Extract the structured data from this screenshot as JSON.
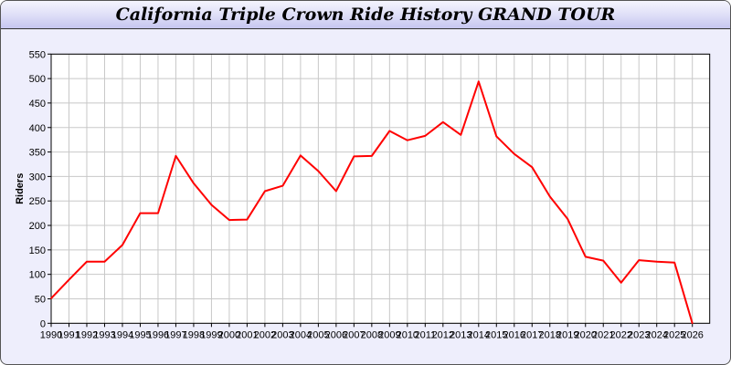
{
  "window": {
    "title": "California Triple Crown Ride History GRAND TOUR"
  },
  "chart_data": {
    "type": "line",
    "title": "California Triple Crown Ride History GRAND TOUR",
    "xlabel": "",
    "ylabel": "Riders",
    "x": [
      1990,
      1991,
      1992,
      1993,
      1994,
      1995,
      1996,
      1997,
      1998,
      1999,
      2000,
      2001,
      2002,
      2003,
      2004,
      2005,
      2006,
      2007,
      2008,
      2009,
      2010,
      2011,
      2012,
      2013,
      2014,
      2015,
      2016,
      2017,
      2018,
      2019,
      2020,
      2021,
      2022,
      2023,
      2024,
      2025,
      2026
    ],
    "series": [
      {
        "color": "#ff0000",
        "values": [
          51,
          89,
          126,
          126,
          160,
          225,
          225,
          342,
          286,
          242,
          211,
          212,
          270,
          281,
          343,
          311,
          270,
          341,
          342,
          393,
          374,
          383,
          411,
          385,
          494,
          382,
          346,
          319,
          259,
          213,
          136,
          128,
          83,
          129,
          126,
          124,
          0
        ]
      }
    ],
    "ylim": [
      0,
      550
    ],
    "yticks": [
      0,
      50,
      100,
      150,
      200,
      250,
      300,
      350,
      400,
      450,
      500,
      550
    ],
    "xlim": [
      1990,
      2027
    ],
    "grid": true,
    "legend": "none",
    "colors": {
      "line": "#ff0000",
      "grid": "#c8c8c8",
      "background": "#eeeefc"
    }
  }
}
